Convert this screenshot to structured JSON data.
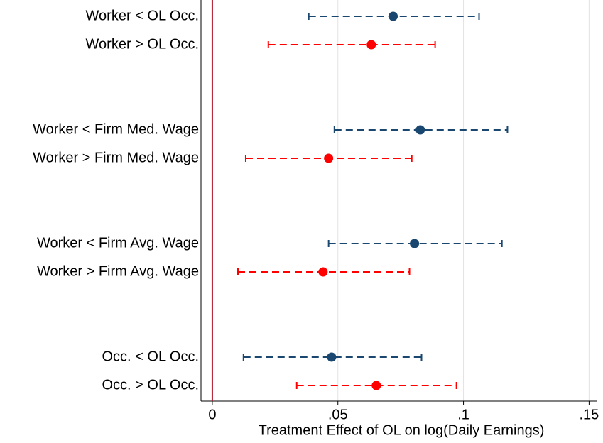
{
  "chart_data": {
    "type": "errorbar",
    "x_label": "Treatment Effect of OL on log(Daily Earnings)",
    "categories": [
      "Worker < OL Occ.",
      "Worker > OL Occ.",
      null,
      null,
      "Worker < Firm Med. Wage",
      "Worker > Firm Med. Wage",
      null,
      null,
      "Worker < Firm Avg. Wage",
      "Worker > Firm Avg. Wage",
      null,
      null,
      "Occ. < OL Occ.",
      "Occ. > OL Occ."
    ],
    "series": [
      {
        "color": "#1a476f",
        "values": [
          0.072,
          null,
          null,
          null,
          0.0828,
          null,
          null,
          null,
          0.0805,
          null,
          null,
          null,
          0.0475,
          null
        ],
        "lower": [
          0.0384,
          null,
          null,
          null,
          0.0486,
          null,
          null,
          null,
          0.0463,
          null,
          null,
          null,
          0.0124,
          null
        ],
        "upper": [
          0.1062,
          null,
          null,
          null,
          0.1175,
          null,
          null,
          null,
          0.1153,
          null,
          null,
          null,
          0.0833,
          null
        ]
      },
      {
        "color": "#ff0000",
        "values": [
          null,
          0.0633,
          null,
          null,
          null,
          0.0463,
          null,
          null,
          null,
          0.0441,
          null,
          null,
          null,
          0.0653
        ],
        "lower": [
          null,
          0.0223,
          null,
          null,
          null,
          0.0133,
          null,
          null,
          null,
          0.0102,
          null,
          null,
          null,
          0.0336
        ],
        "upper": [
          null,
          0.0887,
          null,
          null,
          null,
          0.0794,
          null,
          null,
          null,
          0.0785,
          null,
          null,
          null,
          0.0972
        ]
      }
    ],
    "xlim": [
      -0.0045,
      0.153
    ],
    "xticks": [
      0,
      {
        "value": 0.05,
        "label": ".05"
      },
      {
        "value": 0.1,
        "label": ".1"
      },
      {
        "value": 0.15,
        "label": ".15"
      }
    ],
    "grid": true,
    "refline": {
      "value": 0,
      "color": "#b2182b"
    }
  }
}
